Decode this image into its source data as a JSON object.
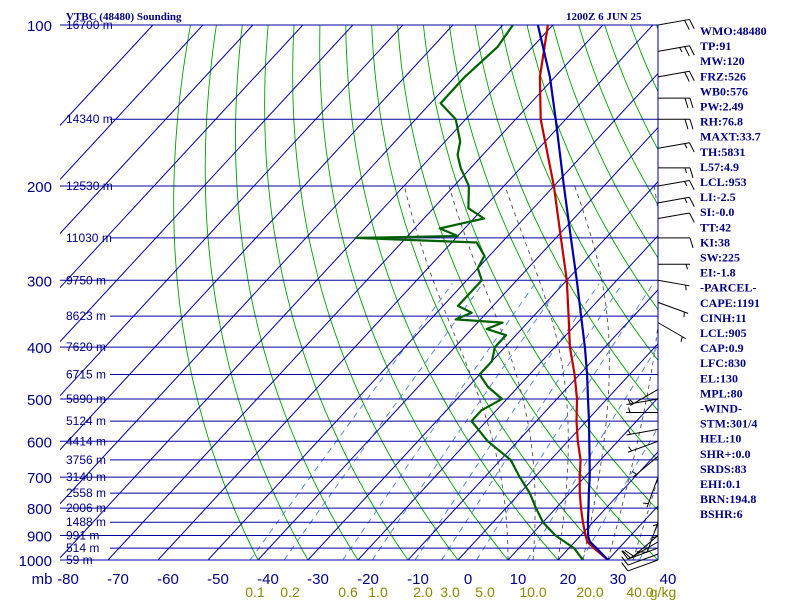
{
  "header": {
    "title": "VTBC (48480) Sounding",
    "time": "1200Z  6 JUN 25"
  },
  "chart_data": {
    "type": "line",
    "chart": "skew-T log-P",
    "y_scale": "log",
    "ylim_hpa": [
      1000,
      100
    ],
    "xlim_c": [
      -80,
      40
    ],
    "pressure_ticks": [
      "100",
      "200",
      "300",
      "400",
      "500",
      "600",
      "700",
      "800",
      "900",
      "1000"
    ],
    "height_labels": [
      {
        "p": 100,
        "label": "16700 m"
      },
      {
        "p": 150,
        "label": "14340 m"
      },
      {
        "p": 200,
        "label": "12530 m"
      },
      {
        "p": 250,
        "label": "11030 m"
      },
      {
        "p": 300,
        "label": "9750 m"
      },
      {
        "p": 350,
        "label": "8623 m"
      },
      {
        "p": 400,
        "label": "7620 m"
      },
      {
        "p": 450,
        "label": "6715 m"
      },
      {
        "p": 500,
        "label": "5890 m"
      },
      {
        "p": 550,
        "label": "5124 m"
      },
      {
        "p": 600,
        "label": "4414 m"
      },
      {
        "p": 650,
        "label": "3756 m"
      },
      {
        "p": 700,
        "label": "3140 m"
      },
      {
        "p": 750,
        "label": "2558 m"
      },
      {
        "p": 800,
        "label": "2006 m"
      },
      {
        "p": 850,
        "label": "1488 m"
      },
      {
        "p": 900,
        "label": "991 m"
      },
      {
        "p": 950,
        "label": "514 m"
      },
      {
        "p": 1000,
        "label": "59 m"
      }
    ],
    "temp_ticks": [
      "mb",
      "-80",
      "-70",
      "-60",
      "-50",
      "-40",
      "-30",
      "-20",
      "-10",
      "0",
      "10",
      "20",
      "30",
      "40"
    ],
    "mixing_ratio_labels": [
      "0.1",
      "0.2",
      "0.6",
      "1.0",
      "2.0",
      "3.0",
      "5.0",
      "10.0",
      "20.0",
      "40.0",
      "g/kg"
    ],
    "series": [
      {
        "key": "temperature",
        "color": "#c00000",
        "points": [
          {
            "p": 1000,
            "t": 30
          },
          {
            "p": 950,
            "t": 25
          },
          {
            "p": 925,
            "t": 22.5
          },
          {
            "p": 900,
            "t": 21
          },
          {
            "p": 850,
            "t": 18
          },
          {
            "p": 800,
            "t": 15
          },
          {
            "p": 750,
            "t": 12
          },
          {
            "p": 700,
            "t": 9
          },
          {
            "p": 650,
            "t": 6
          },
          {
            "p": 600,
            "t": 2
          },
          {
            "p": 550,
            "t": -2
          },
          {
            "p": 500,
            "t": -6
          },
          {
            "p": 450,
            "t": -11
          },
          {
            "p": 400,
            "t": -17
          },
          {
            "p": 350,
            "t": -23
          },
          {
            "p": 300,
            "t": -30
          },
          {
            "p": 250,
            "t": -39
          },
          {
            "p": 200,
            "t": -50
          },
          {
            "p": 150,
            "t": -65
          },
          {
            "p": 125,
            "t": -73
          },
          {
            "p": 100,
            "t": -81
          }
        ]
      },
      {
        "key": "dewpoint",
        "color": "#006000",
        "points": [
          {
            "p": 1000,
            "t": 25
          },
          {
            "p": 950,
            "t": 21
          },
          {
            "p": 925,
            "t": 18
          },
          {
            "p": 900,
            "t": 15
          },
          {
            "p": 850,
            "t": 10
          },
          {
            "p": 800,
            "t": 6
          },
          {
            "p": 750,
            "t": 2
          },
          {
            "p": 700,
            "t": -3
          },
          {
            "p": 650,
            "t": -8
          },
          {
            "p": 600,
            "t": -16
          },
          {
            "p": 550,
            "t": -23
          },
          {
            "p": 525,
            "t": -23
          },
          {
            "p": 500,
            "t": -21
          },
          {
            "p": 475,
            "t": -26
          },
          {
            "p": 450,
            "t": -30
          },
          {
            "p": 425,
            "t": -30
          },
          {
            "p": 400,
            "t": -32
          },
          {
            "p": 380,
            "t": -32
          },
          {
            "p": 370,
            "t": -37
          },
          {
            "p": 360,
            "t": -35
          },
          {
            "p": 355,
            "t": -45
          },
          {
            "p": 345,
            "t": -43
          },
          {
            "p": 335,
            "t": -47
          },
          {
            "p": 320,
            "t": -47
          },
          {
            "p": 300,
            "t": -47
          },
          {
            "p": 285,
            "t": -50
          },
          {
            "p": 270,
            "t": -51
          },
          {
            "p": 255,
            "t": -55
          },
          {
            "p": 250,
            "t": -80
          },
          {
            "p": 248,
            "t": -60
          },
          {
            "p": 240,
            "t": -65
          },
          {
            "p": 230,
            "t": -58
          },
          {
            "p": 220,
            "t": -63
          },
          {
            "p": 200,
            "t": -67
          },
          {
            "p": 185,
            "t": -72
          },
          {
            "p": 175,
            "t": -75
          },
          {
            "p": 165,
            "t": -77
          },
          {
            "p": 150,
            "t": -82
          },
          {
            "p": 140,
            "t": -88
          },
          {
            "p": 125,
            "t": -88
          },
          {
            "p": 110,
            "t": -87
          },
          {
            "p": 100,
            "t": -88
          }
        ]
      },
      {
        "key": "parcel",
        "color": "#0000a0",
        "points": [
          {
            "p": 1000,
            "t": 30
          },
          {
            "p": 950,
            "t": 25.5
          },
          {
            "p": 925,
            "t": 23
          },
          {
            "p": 900,
            "t": 21.5
          },
          {
            "p": 850,
            "t": 19
          },
          {
            "p": 800,
            "t": 16.5
          },
          {
            "p": 750,
            "t": 13.8
          },
          {
            "p": 700,
            "t": 11
          },
          {
            "p": 650,
            "t": 7.8
          },
          {
            "p": 600,
            "t": 4.3
          },
          {
            "p": 550,
            "t": 0.5
          },
          {
            "p": 500,
            "t": -3.8
          },
          {
            "p": 450,
            "t": -8.5
          },
          {
            "p": 400,
            "t": -14
          },
          {
            "p": 350,
            "t": -20.5
          },
          {
            "p": 300,
            "t": -28
          },
          {
            "p": 250,
            "t": -37
          },
          {
            "p": 200,
            "t": -48
          },
          {
            "p": 150,
            "t": -62
          },
          {
            "p": 125,
            "t": -71
          },
          {
            "p": 100,
            "t": -83
          }
        ]
      }
    ],
    "wind_barbs": [
      {
        "p": 100,
        "dir": 80,
        "kt": 20
      },
      {
        "p": 112,
        "dir": 80,
        "kt": 25
      },
      {
        "p": 125,
        "dir": 80,
        "kt": 20
      },
      {
        "p": 137,
        "dir": 90,
        "kt": 20
      },
      {
        "p": 150,
        "dir": 90,
        "kt": 20
      },
      {
        "p": 170,
        "dir": 80,
        "kt": 15
      },
      {
        "p": 185,
        "dir": 90,
        "kt": 15
      },
      {
        "p": 200,
        "dir": 80,
        "kt": 15
      },
      {
        "p": 215,
        "dir": 80,
        "kt": 15
      },
      {
        "p": 230,
        "dir": 80,
        "kt": 10
      },
      {
        "p": 250,
        "dir": 90,
        "kt": 10
      },
      {
        "p": 280,
        "dir": 90,
        "kt": 5
      },
      {
        "p": 300,
        "dir": 100,
        "kt": 5
      },
      {
        "p": 330,
        "dir": 110,
        "kt": 5
      },
      {
        "p": 360,
        "dir": 120,
        "kt": 5
      },
      {
        "p": 480,
        "dir": 240,
        "kt": 5
      },
      {
        "p": 500,
        "dir": 260,
        "kt": 5
      },
      {
        "p": 530,
        "dir": 270,
        "kt": 5
      },
      {
        "p": 570,
        "dir": 260,
        "kt": 5
      },
      {
        "p": 600,
        "dir": 250,
        "kt": 5
      },
      {
        "p": 640,
        "dir": 230,
        "kt": 5
      },
      {
        "p": 700,
        "dir": 200,
        "kt": 5
      },
      {
        "p": 760,
        "dir": 180,
        "kt": 5
      },
      {
        "p": 800,
        "dir": 180,
        "kt": 5
      },
      {
        "p": 850,
        "dir": 200,
        "kt": 10
      },
      {
        "p": 900,
        "dir": 230,
        "kt": 10
      },
      {
        "p": 925,
        "dir": 240,
        "kt": 10
      },
      {
        "p": 950,
        "dir": 250,
        "kt": 10
      },
      {
        "p": 975,
        "dir": 250,
        "kt": 10
      },
      {
        "p": 1000,
        "dir": 250,
        "kt": 10
      }
    ]
  },
  "indices": [
    "WMO:48480",
    "TP:91",
    "MW:120",
    "FRZ:526",
    "WB0:576",
    "PW:2.49",
    "RH:76.8",
    "MAXT:33.7",
    "TH:5831",
    "L57:4.9",
    "LCL:953",
    "LI:-2.5",
    "SI:-0.0",
    "TT:42",
    "KI:38",
    "SW:225",
    "EI:-1.8",
    "-PARCEL-",
    "CAPE:1191",
    "CINH:11",
    "LCL:905",
    "CAP:0.9",
    "LFC:830",
    "EL:130",
    "MPL:80",
    "-WIND-",
    "STM:301/4",
    "HEL:10",
    "SHR+:0.0",
    "SRDS:83",
    "EHI:0.1",
    "BRN:194.8",
    "BSHR:6"
  ],
  "colors": {
    "grid": "#0000a0",
    "dry_adiabat": "#00a000",
    "moist_adiabat": "#505050",
    "mixing_ratio": "#4f7fd8",
    "axis_text": "#000080"
  }
}
